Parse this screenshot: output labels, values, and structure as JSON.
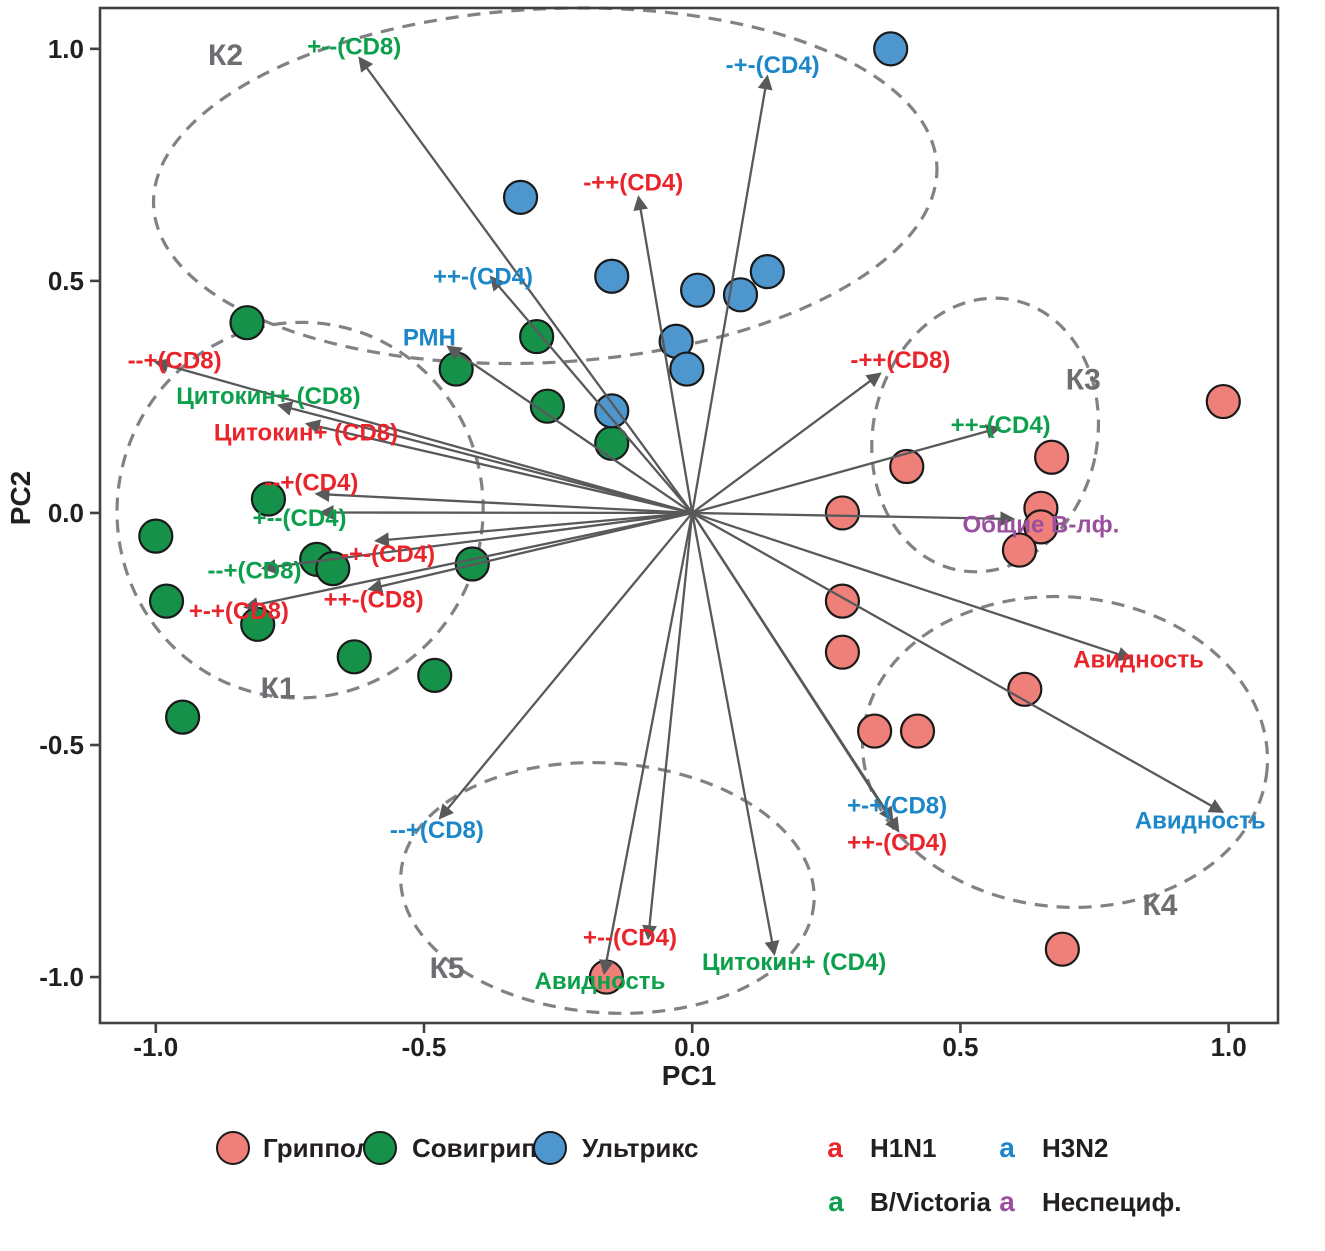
{
  "colors": {
    "grippol": "#EE7F79",
    "sovigripp": "#169149",
    "ultrix": "#4E96CE",
    "red": "#E9242B",
    "green": "#0DA04C",
    "blue": "#1B87C9",
    "purple": "#9A4F9E",
    "cluster": "#6D6E71",
    "arrow": "#58595B",
    "ellipse": "#808285",
    "axis": "#414042",
    "text": "#231F20",
    "marker_stroke": "#1A1A1A"
  },
  "chart_data": {
    "type": "scatter",
    "title": "",
    "xlabel": "PC1",
    "ylabel": "PC2",
    "xlim": [
      -1.104,
      1.092
    ],
    "ylim": [
      -1.099,
      1.088
    ],
    "grid": false,
    "x_ticks": [
      -1.0,
      -0.5,
      0.0,
      0.5,
      1.0
    ],
    "x_tick_labels": [
      "-1.0",
      "-0.5",
      "0.0",
      "0.5",
      "1.0"
    ],
    "y_ticks": [
      1.0,
      0.5,
      0.0,
      -0.5,
      -1.0
    ],
    "y_tick_labels": [
      "1.0",
      "0.5",
      "0.0",
      "-0.5",
      "-1.0"
    ],
    "origin": [
      0,
      0
    ],
    "series": [
      {
        "name": "Гриппол",
        "color_key": "grippol",
        "points": [
          [
            0.99,
            0.24
          ],
          [
            0.67,
            0.12
          ],
          [
            0.65,
            0.01
          ],
          [
            0.65,
            -0.03
          ],
          [
            0.61,
            -0.08
          ],
          [
            0.4,
            0.1
          ],
          [
            0.28,
            0.0
          ],
          [
            0.28,
            -0.19
          ],
          [
            0.28,
            -0.3
          ],
          [
            0.62,
            -0.38
          ],
          [
            0.34,
            -0.47
          ],
          [
            0.42,
            -0.47
          ],
          [
            0.69,
            -0.94
          ],
          [
            -0.16,
            -1.0
          ]
        ]
      },
      {
        "name": "Совигрипп",
        "color_key": "sovigripp",
        "points": [
          [
            -0.83,
            0.41
          ],
          [
            -0.44,
            0.31
          ],
          [
            -0.29,
            0.38
          ],
          [
            -0.27,
            0.23
          ],
          [
            -0.15,
            0.15
          ],
          [
            -1.0,
            -0.05
          ],
          [
            -0.79,
            0.03
          ],
          [
            -0.7,
            -0.1
          ],
          [
            -0.67,
            -0.12
          ],
          [
            -0.41,
            -0.11
          ],
          [
            -0.98,
            -0.19
          ],
          [
            -0.81,
            -0.24
          ],
          [
            -0.63,
            -0.31
          ],
          [
            -0.48,
            -0.35
          ],
          [
            -0.95,
            -0.44
          ]
        ]
      },
      {
        "name": "Ультрикс",
        "color_key": "ultrix",
        "points": [
          [
            0.37,
            1.0
          ],
          [
            -0.32,
            0.68
          ],
          [
            -0.15,
            0.51
          ],
          [
            0.01,
            0.48
          ],
          [
            0.09,
            0.47
          ],
          [
            0.14,
            0.52
          ],
          [
            -0.03,
            0.37
          ],
          [
            -0.01,
            0.31
          ],
          [
            -0.15,
            0.22
          ]
        ]
      }
    ],
    "loadings": [
      {
        "label": "+--(CD8)",
        "color_key": "green",
        "tip": [
          -0.62,
          0.98
        ],
        "label_pos": [
          -0.63,
          1.005
        ]
      },
      {
        "label": "-+-(CD4)",
        "color_key": "blue",
        "tip": [
          0.14,
          0.94
        ],
        "label_pos": [
          0.15,
          0.965
        ]
      },
      {
        "label": "-++(CD4)",
        "color_key": "red",
        "tip": [
          -0.1,
          0.68
        ],
        "label_pos": [
          -0.11,
          0.712
        ]
      },
      {
        "label": "++-(CD4)",
        "color_key": "blue",
        "tip": [
          -0.375,
          0.508
        ],
        "label_pos": [
          -0.39,
          0.51
        ]
      },
      {
        "label": "РМН",
        "color_key": "blue",
        "tip": [
          -0.455,
          0.358
        ],
        "label_pos": [
          -0.49,
          0.378
        ]
      },
      {
        "label": "--+(CD8)",
        "color_key": "red",
        "tip": [
          -1.0,
          0.325
        ],
        "label_pos": [
          -0.965,
          0.328
        ]
      },
      {
        "label": "Цитокин+ (CD8)",
        "color_key": "green",
        "tip": [
          -0.77,
          0.232
        ],
        "label_pos": [
          -0.79,
          0.252
        ]
      },
      {
        "label": "Цитокин+ (CD8)",
        "color_key": "red",
        "tip": [
          -0.718,
          0.192
        ],
        "label_pos": [
          -0.72,
          0.173
        ]
      },
      {
        "label": "--+(CD4)",
        "color_key": "red",
        "tip": [
          -0.7,
          0.041
        ],
        "label_pos": [
          -0.71,
          0.066
        ]
      },
      {
        "label": "+--(CD4)",
        "color_key": "green",
        "tip": [
          -0.692,
          0.001
        ],
        "label_pos": [
          -0.732,
          -0.011
        ]
      },
      {
        "label": "-+-(CD4)",
        "color_key": "red",
        "tip": [
          -0.589,
          -0.06
        ],
        "label_pos": [
          -0.567,
          -0.088
        ]
      },
      {
        "label": "--+(CD8)",
        "color_key": "green",
        "tip": [
          -0.8,
          -0.119
        ],
        "label_pos": [
          -0.816,
          -0.124
        ]
      },
      {
        "label": "++-(CD8)",
        "color_key": "red",
        "tip": [
          -0.602,
          -0.164
        ],
        "label_pos": [
          -0.594,
          -0.187
        ]
      },
      {
        "label": "+-+(CD8)",
        "color_key": "red",
        "tip": [
          -0.833,
          -0.203
        ],
        "label_pos": [
          -0.845,
          -0.211
        ]
      },
      {
        "label": "--+(CD8)",
        "color_key": "blue",
        "tip": [
          -0.47,
          -0.657
        ],
        "label_pos": [
          -0.476,
          -0.683
        ]
      },
      {
        "label": "Авидность",
        "color_key": "green",
        "tip": [
          -0.164,
          -0.991
        ],
        "label_pos": [
          -0.172,
          -1.008
        ]
      },
      {
        "label": "+--(CD4)",
        "color_key": "red",
        "tip": [
          -0.082,
          -0.916
        ],
        "label_pos": [
          -0.116,
          -0.915
        ]
      },
      {
        "label": "Цитокин+ (CD4)",
        "color_key": "green",
        "tip": [
          0.153,
          -0.95
        ],
        "label_pos": [
          0.19,
          -0.968
        ]
      },
      {
        "label": "++-(CD4)",
        "color_key": "red",
        "tip": [
          0.384,
          -0.685
        ],
        "label_pos": [
          0.382,
          -0.71
        ]
      },
      {
        "label": "+-+(CD8)",
        "color_key": "blue",
        "tip": [
          0.373,
          -0.662
        ],
        "label_pos": [
          0.382,
          -0.63
        ]
      },
      {
        "label": "Авидность",
        "color_key": "blue",
        "tip": [
          0.988,
          -0.644
        ],
        "label_pos": [
          0.947,
          -0.663
        ]
      },
      {
        "label": "Авидность",
        "color_key": "red",
        "tip": [
          0.817,
          -0.313
        ],
        "label_pos": [
          0.832,
          -0.316
        ]
      },
      {
        "label": "-++(CD8)",
        "color_key": "red",
        "tip": [
          0.35,
          0.3
        ],
        "label_pos": [
          0.388,
          0.33
        ]
      },
      {
        "label": "++-(CD4)",
        "color_key": "green",
        "tip": [
          0.572,
          0.183
        ],
        "label_pos": [
          0.575,
          0.19
        ]
      },
      {
        "label": "Общие В-лф.",
        "color_key": "purple",
        "tip": [
          0.598,
          -0.013
        ],
        "label_pos": [
          0.65,
          -0.025
        ]
      }
    ],
    "clusters": [
      {
        "label": "К1",
        "label_pos": [
          -0.772,
          -0.377
        ],
        "center": [
          -0.731,
          0.006
        ],
        "rx": 0.341,
        "ry": 0.405,
        "rot": 10
      },
      {
        "label": "К2",
        "label_pos": [
          -0.87,
          0.987
        ],
        "center": [
          -0.274,
          0.705
        ],
        "rx": 0.731,
        "ry": 0.381,
        "rot": -3
      },
      {
        "label": "К3",
        "label_pos": [
          0.729,
          0.287
        ],
        "center": [
          0.546,
          0.168
        ],
        "rx": 0.209,
        "ry": 0.297,
        "rot": 12
      },
      {
        "label": "К4",
        "label_pos": [
          0.872,
          -0.845
        ],
        "center": [
          0.695,
          -0.515
        ],
        "rx": 0.378,
        "ry": 0.334,
        "rot": 5
      },
      {
        "label": "К5",
        "label_pos": [
          -0.457,
          -0.981
        ],
        "center": [
          -0.158,
          -0.808
        ],
        "rx": 0.386,
        "ry": 0.269,
        "rot": 4
      }
    ]
  },
  "legend": {
    "vaccines": [
      {
        "label": "Гриппол",
        "color_key": "grippol"
      },
      {
        "label": "Совигрипп",
        "color_key": "sovigripp"
      },
      {
        "label": "Ультрикс",
        "color_key": "ultrix"
      }
    ],
    "antigens": [
      {
        "symbol": "a",
        "label": "H1N1",
        "color_key": "red"
      },
      {
        "symbol": "a",
        "label": "H3N2",
        "color_key": "blue"
      },
      {
        "symbol": "a",
        "label": "B/Victoria",
        "color_key": "green"
      },
      {
        "symbol": "a",
        "label": "Неспециф.",
        "color_key": "purple"
      }
    ]
  }
}
